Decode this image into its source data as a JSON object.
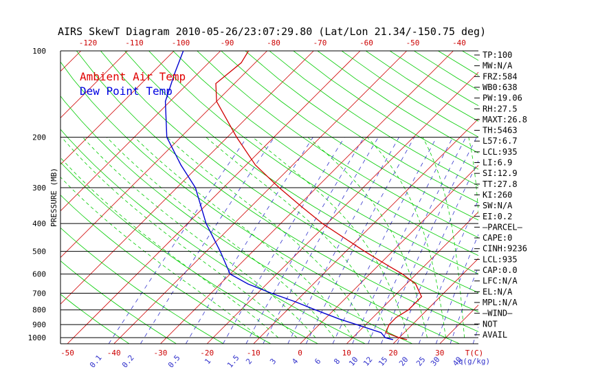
{
  "chart_data": {
    "type": "line",
    "title": "AIRS SkewT Diagram 2010-05-26/23:07:29.80 (Lat/Lon 21.34/-150.75 deg)",
    "ylabel": "PRESSURE (MB)",
    "xlabel_bottom": "T(C)",
    "mixing_ratio_unit": "q(g/kg)",
    "y_scale": "log",
    "ylim": [
      1050,
      100
    ],
    "xlim_bottom": [
      -50,
      30
    ],
    "pressure_ticks": [
      "100",
      "200",
      "300",
      "400",
      "500",
      "600",
      "700",
      "800",
      "900",
      "1000"
    ],
    "bottom_temp_ticks": [
      "-50",
      "-40",
      "-30",
      "-20",
      "-10",
      "0",
      "10",
      "20",
      "30"
    ],
    "top_temp_ticks": [
      "-120",
      "-110",
      "-100",
      "-90",
      "-80",
      "-70",
      "-60",
      "-50",
      "-40"
    ],
    "mixing_ratio_ticks": [
      "0.1",
      "0.2",
      "0.5",
      "1",
      "1.5",
      "2",
      "3",
      "4",
      "6",
      "8",
      "10",
      "12",
      "15",
      "20",
      "25",
      "30",
      "40"
    ],
    "legend": [
      {
        "label": "Ambient Air Temp",
        "color": "#e00000"
      },
      {
        "label": "Dew Point Temp",
        "color": "#0000e0"
      }
    ],
    "series": [
      {
        "name": "Ambient Air Temp",
        "color": "#d00000",
        "points": [
          [
            1015,
            22
          ],
          [
            1000,
            20
          ],
          [
            960,
            16
          ],
          [
            900,
            15
          ],
          [
            850,
            15
          ],
          [
            800,
            16
          ],
          [
            720,
            16
          ],
          [
            650,
            12
          ],
          [
            600,
            7
          ],
          [
            560,
            2
          ],
          [
            500,
            -6
          ],
          [
            400,
            -21
          ],
          [
            350,
            -29
          ],
          [
            300,
            -38
          ],
          [
            250,
            -48
          ],
          [
            200,
            -58
          ],
          [
            150,
            -70
          ],
          [
            130,
            -74
          ],
          [
            110,
            -73
          ],
          [
            100,
            -74
          ]
        ]
      },
      {
        "name": "Dew Point Temp",
        "color": "#0000d0",
        "points": [
          [
            1015,
            19
          ],
          [
            1000,
            17
          ],
          [
            960,
            15
          ],
          [
            900,
            8
          ],
          [
            860,
            3
          ],
          [
            800,
            -4
          ],
          [
            750,
            -10
          ],
          [
            700,
            -17
          ],
          [
            650,
            -24
          ],
          [
            600,
            -30
          ],
          [
            500,
            -37
          ],
          [
            400,
            -46
          ],
          [
            300,
            -56
          ],
          [
            300,
            -56
          ],
          [
            250,
            -64
          ],
          [
            200,
            -73
          ],
          [
            150,
            -81
          ],
          [
            120,
            -85
          ],
          [
            100,
            -88
          ]
        ]
      }
    ]
  },
  "indices": [
    "TP:100",
    "MW:N/A",
    "FRZ:584",
    "WB0:638",
    "PW:19.06",
    "RH:27.5",
    "MAXT:26.8",
    "TH:5463",
    "L57:6.7",
    "LCL:935",
    "LI:6.9",
    "SI:12.9",
    "TT:27.8",
    "KI:260",
    "SW:N/A",
    "EI:0.2",
    "—PARCEL—",
    "CAPE:0",
    "CINH:9236",
    "LCL:935",
    "CAP:0.0",
    "LFC:N/A",
    "EL:N/A",
    "MPL:N/A",
    "—WIND—",
    "NOT",
    "AVAIL"
  ],
  "colors": {
    "isotherm": "#d00000",
    "dry_adiabat": "#00cc00",
    "moist_adiabat": "#00cc00",
    "mixing_ratio": "#3333cc",
    "isobar": "#000000",
    "tick_label": "#cc0000",
    "mixing_label": "#3333cc"
  }
}
